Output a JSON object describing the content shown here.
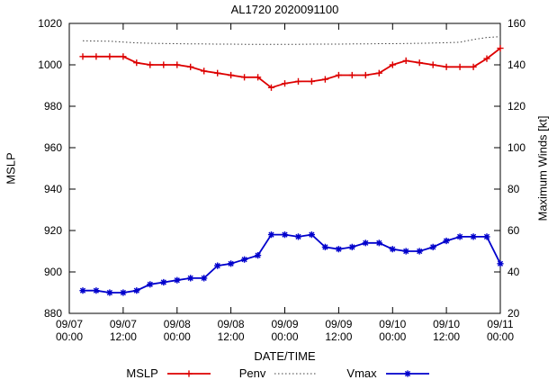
{
  "chart_data": {
    "type": "line",
    "title": "AL1720 2020091100",
    "xlabel": "DATE/TIME",
    "ylabel": "MSLP",
    "y2label": "Maximum Winds [kt]",
    "xlim": [
      0,
      96
    ],
    "ylim": [
      880,
      1020
    ],
    "y2lim": [
      20,
      160
    ],
    "grid": false,
    "y_ticks": [
      880,
      900,
      920,
      940,
      960,
      980,
      1000,
      1020
    ],
    "y2_ticks": [
      20,
      40,
      60,
      80,
      100,
      120,
      140,
      160
    ],
    "x_ticks": [
      {
        "hour": 0,
        "date": "09/07",
        "time": "00:00"
      },
      {
        "hour": 12,
        "date": "09/07",
        "time": "12:00"
      },
      {
        "hour": 24,
        "date": "09/08",
        "time": "00:00"
      },
      {
        "hour": 36,
        "date": "09/08",
        "time": "12:00"
      },
      {
        "hour": 48,
        "date": "09/09",
        "time": "00:00"
      },
      {
        "hour": 60,
        "date": "09/09",
        "time": "12:00"
      },
      {
        "hour": 72,
        "date": "09/10",
        "time": "00:00"
      },
      {
        "hour": 84,
        "date": "09/10",
        "time": "12:00"
      },
      {
        "hour": 96,
        "date": "09/11",
        "time": "00:00"
      }
    ],
    "x": [
      3,
      6,
      9,
      12,
      15,
      18,
      21,
      24,
      27,
      30,
      33,
      36,
      39,
      42,
      45,
      48,
      51,
      54,
      57,
      60,
      63,
      66,
      69,
      72,
      75,
      78,
      81,
      84,
      87,
      90,
      93,
      96
    ],
    "series": [
      {
        "name": "MSLP",
        "axis": "left",
        "color": "#dd0000",
        "style": "solid",
        "marker": "plus",
        "values": [
          1004,
          1004,
          1004,
          1004,
          1001,
          1000,
          1000,
          1000,
          999,
          997,
          996,
          995,
          994,
          994,
          989,
          991,
          992,
          992,
          993,
          995,
          995,
          995,
          996,
          1000,
          1002,
          1001,
          1000,
          999,
          999,
          999,
          1003,
          1008
        ]
      },
      {
        "name": "Penv",
        "axis": "left",
        "color": "#404040",
        "style": "dotted",
        "marker": "none",
        "values": [
          1011.6,
          1011.5,
          1011.4,
          1011.0,
          1010.6,
          1010.4,
          1010.3,
          1010.2,
          1010.1,
          1010.1,
          1010.0,
          1010.0,
          1009.9,
          1009.9,
          1009.9,
          1009.9,
          1009.9,
          1010.0,
          1010.0,
          1010.0,
          1010.1,
          1010.1,
          1010.2,
          1010.2,
          1010.3,
          1010.4,
          1010.5,
          1010.7,
          1010.9,
          1012.2,
          1013.2,
          1013.6
        ]
      },
      {
        "name": "Vmax",
        "axis": "right",
        "color": "#0000cc",
        "style": "solid",
        "marker": "star",
        "values": [
          31,
          31,
          30,
          30,
          31,
          34,
          35,
          36,
          37,
          37,
          43,
          44,
          46,
          48,
          58,
          58,
          57,
          58,
          52,
          51,
          52,
          54,
          54,
          51,
          50,
          50,
          52,
          55,
          57,
          57,
          57,
          44
        ]
      }
    ]
  },
  "legend": {
    "entries": [
      {
        "label": "MSLP",
        "series": "MSLP"
      },
      {
        "label": "Penv",
        "series": "Penv"
      },
      {
        "label": "Vmax",
        "series": "Vmax"
      }
    ]
  }
}
